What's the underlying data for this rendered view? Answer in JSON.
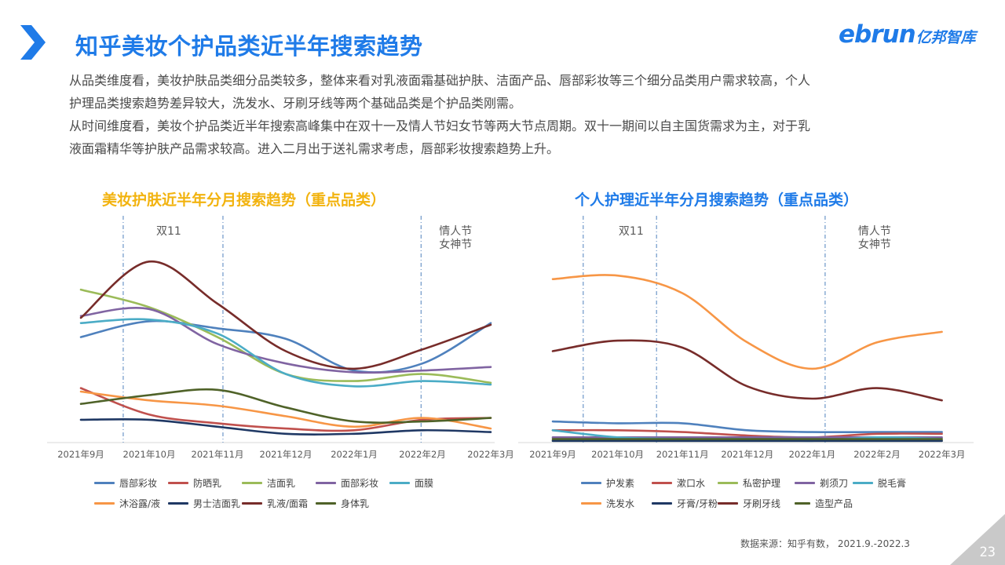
{
  "header": {
    "title": "知乎美妆个护品类近半年搜索趋势",
    "logo_en": "ebrun",
    "logo_cn": "亿邦智库",
    "accent_color": "#1f7be8"
  },
  "intro": [
    "从品类维度看，美妆护肤品类细分品类较多，整体来看对乳液面霜基础护肤、洁面产品、唇部彩妆等三个细分品类用户需求较高，个人",
    "护理品类搜索趋势差异较大，洗发水、牙刷牙线等两个基础品类是个护品类刚需。",
    "从时间维度看，美妆个护品类近半年搜索高峰集中在双十一及情人节妇女节等两大节点周期。双十一期间以自主国货需求为主，对于乳",
    "液面霜精华等护肤产品需求较高。进入二月出于送礼需求考虑，唇部彩妆搜索趋势上升。"
  ],
  "chart_data": [
    {
      "type": "line",
      "title": "美妆护肤近半年分月搜索趋势（重点品类）",
      "title_color": "#f2b30f",
      "categories": [
        "2021年9月",
        "2021年10月",
        "2021年11月",
        "2021年12月",
        "2022年1月",
        "2022年2月",
        "2022年3月"
      ],
      "ylim": [
        0,
        100
      ],
      "grid": false,
      "legend_position": "bottom",
      "annotations": [
        {
          "position": 0.62,
          "lines": [
            "双11"
          ]
        },
        {
          "position": 2.08,
          "lines": []
        },
        {
          "position": 4.98,
          "lines": [
            "情人节",
            "女神节"
          ]
        }
      ],
      "series": [
        {
          "name": "唇部彩妆",
          "color": "#4f81bd",
          "values": [
            60,
            69,
            65,
            59,
            41,
            45,
            68
          ]
        },
        {
          "name": "防晒乳",
          "color": "#c0504d",
          "values": [
            31,
            16,
            11,
            8,
            7,
            13,
            14
          ]
        },
        {
          "name": "洁面乳",
          "color": "#9bbb59",
          "values": [
            87,
            77,
            60,
            39,
            35,
            39,
            34
          ]
        },
        {
          "name": "面部彩妆",
          "color": "#8064a2",
          "values": [
            72,
            76,
            56,
            45,
            40,
            41,
            43
          ]
        },
        {
          "name": "面膜",
          "color": "#4bacc6",
          "values": [
            68,
            70,
            62,
            39,
            32,
            35,
            33
          ]
        },
        {
          "name": "沐浴露/液",
          "color": "#f79646",
          "values": [
            29,
            24,
            21,
            15,
            9,
            14,
            8
          ]
        },
        {
          "name": "男士洁面乳",
          "color": "#1f3864",
          "values": [
            13,
            13,
            9,
            5,
            5,
            7,
            6
          ]
        },
        {
          "name": "乳液/面霜",
          "color": "#772c2a",
          "values": [
            71,
            103,
            79,
            52,
            42,
            53,
            67
          ]
        },
        {
          "name": "身体乳",
          "color": "#4f6228",
          "values": [
            22,
            27,
            30,
            20,
            12,
            12,
            14
          ]
        }
      ]
    },
    {
      "type": "line",
      "title": "个人护理近半年分月搜索趋势（重点品类）",
      "title_color": "#1f7be8",
      "categories": [
        "2021年9月",
        "2021年10月",
        "2021年11月",
        "2021年12月",
        "2022年1月",
        "2022年2月",
        "2022年3月"
      ],
      "ylim": [
        0,
        100
      ],
      "grid": false,
      "legend_position": "bottom",
      "annotations": [
        {
          "position": 0.47,
          "lines": [
            "双11"
          ]
        },
        {
          "position": 1.6,
          "lines": []
        },
        {
          "position": 4.2,
          "lines": [
            "情人节",
            "女神节"
          ]
        }
      ],
      "series": [
        {
          "name": "护发素",
          "color": "#4f81bd",
          "values": [
            12,
            11,
            11,
            7,
            6,
            6,
            6
          ]
        },
        {
          "name": "漱口水",
          "color": "#c0504d",
          "values": [
            7,
            7,
            6,
            4,
            3,
            5,
            5
          ]
        },
        {
          "name": "私密护理",
          "color": "#9bbb59",
          "values": [
            1,
            1,
            1,
            1,
            1,
            1,
            1
          ]
        },
        {
          "name": "剃须刀",
          "color": "#8064a2",
          "values": [
            3,
            3,
            3,
            3,
            3,
            3,
            3
          ]
        },
        {
          "name": "脱毛膏",
          "color": "#4bacc6",
          "values": [
            7,
            3,
            2,
            2,
            1,
            3,
            2
          ]
        },
        {
          "name": "洗发水",
          "color": "#f79646",
          "values": [
            93,
            95,
            85,
            57,
            42,
            57,
            63
          ]
        },
        {
          "name": "牙膏/牙粉",
          "color": "#1f3864",
          "values": [
            1,
            1,
            1,
            1,
            1,
            1,
            1
          ]
        },
        {
          "name": "牙刷牙线",
          "color": "#772c2a",
          "values": [
            52,
            58,
            54,
            32,
            25,
            31,
            24
          ]
        },
        {
          "name": "造型产品",
          "color": "#4f6228",
          "values": [
            2,
            2,
            2,
            2,
            2,
            2,
            2
          ]
        }
      ]
    }
  ],
  "footer": {
    "source": "数据来源：知乎有数， 2021.9.-2022.3",
    "page_number": "23"
  }
}
